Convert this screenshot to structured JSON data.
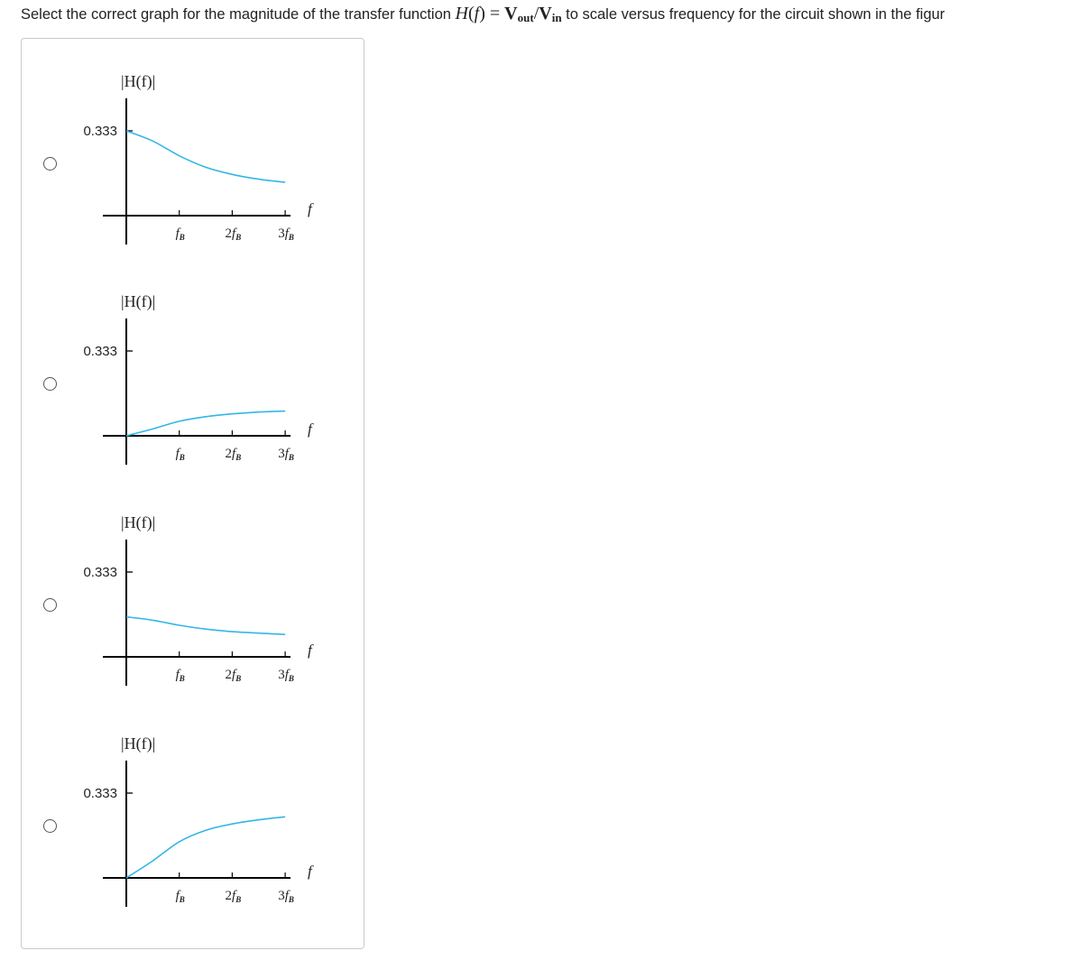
{
  "question": {
    "prefix": "Select the correct graph for the magnitude of the transfer function ",
    "math_H": "H",
    "math_f": "f",
    "math_V": "V",
    "math_out": "out",
    "math_in": "in",
    "suffix": " to scale versus frequency for the circuit shown in the figur"
  },
  "colors": {
    "curve": "#33b6e6",
    "axis": "#000000",
    "radio_border": "#555555"
  },
  "chart_data": [
    {
      "type": "line",
      "ylabel": "|H(f)|",
      "xlabel": "f",
      "y_marker": "0.333",
      "x_ticks": [
        {
          "coef": "",
          "sub": "B"
        },
        {
          "coef": "2",
          "sub": "B"
        },
        {
          "coef": "3",
          "sub": "B"
        }
      ],
      "ylim": [
        0,
        0.333
      ],
      "xlim": [
        0,
        3
      ],
      "series": [
        {
          "x": [
            0,
            0.5,
            1,
            1.5,
            2,
            2.5,
            3
          ],
          "y": [
            0.333,
            0.293,
            0.235,
            0.19,
            0.162,
            0.143,
            0.131
          ]
        }
      ]
    },
    {
      "type": "line",
      "ylabel": "|H(f)|",
      "xlabel": "f",
      "y_marker": "0.333",
      "x_ticks": [
        {
          "coef": "",
          "sub": "B"
        },
        {
          "coef": "2",
          "sub": "B"
        },
        {
          "coef": "3",
          "sub": "B"
        }
      ],
      "ylim": [
        0,
        0.333
      ],
      "xlim": [
        0,
        3
      ],
      "series": [
        {
          "x": [
            0,
            0.5,
            1,
            1.5,
            2,
            2.5,
            3
          ],
          "y": [
            0,
            0.027,
            0.057,
            0.075,
            0.086,
            0.093,
            0.097
          ]
        }
      ]
    },
    {
      "type": "line",
      "ylabel": "|H(f)|",
      "xlabel": "f",
      "y_marker": "0.333",
      "x_ticks": [
        {
          "coef": "",
          "sub": "B"
        },
        {
          "coef": "2",
          "sub": "B"
        },
        {
          "coef": "3",
          "sub": "B"
        }
      ],
      "ylim": [
        0,
        0.333
      ],
      "xlim": [
        0,
        3
      ],
      "series": [
        {
          "x": [
            0,
            0.5,
            1,
            1.5,
            2,
            2.5,
            3
          ],
          "y": [
            0.157,
            0.144,
            0.124,
            0.109,
            0.099,
            0.093,
            0.088
          ]
        }
      ]
    },
    {
      "type": "line",
      "ylabel": "|H(f)|",
      "xlabel": "f",
      "y_marker": "0.333",
      "x_ticks": [
        {
          "coef": "",
          "sub": "B"
        },
        {
          "coef": "2",
          "sub": "B"
        },
        {
          "coef": "3",
          "sub": "B"
        }
      ],
      "ylim": [
        0,
        0.333
      ],
      "xlim": [
        0,
        3
      ],
      "series": [
        {
          "x": [
            0,
            0.5,
            1,
            1.5,
            2,
            2.5,
            3
          ],
          "y": [
            0,
            0.067,
            0.142,
            0.187,
            0.212,
            0.228,
            0.24
          ]
        }
      ]
    }
  ]
}
